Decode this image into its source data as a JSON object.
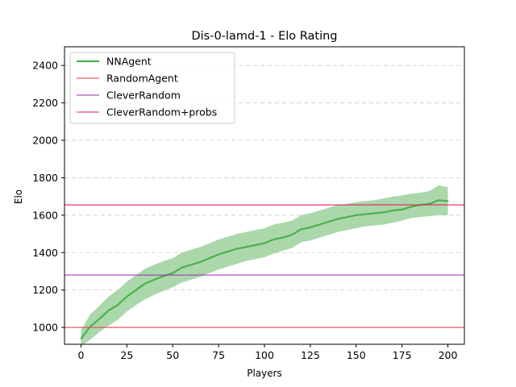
{
  "chart_data": {
    "type": "line",
    "title": "Dis-0-lamd-1 - Elo Rating",
    "xlabel": "Players",
    "ylabel": "Elo",
    "xlim": [
      -9,
      209
    ],
    "ylim": [
      910,
      2500
    ],
    "xticks": [
      0,
      25,
      50,
      75,
      100,
      125,
      150,
      175,
      200
    ],
    "yticks": [
      1000,
      1200,
      1400,
      1600,
      1800,
      2000,
      2200,
      2400
    ],
    "grid": "y-dashed",
    "legend_position": "top-left",
    "series": [
      {
        "name": "NNAgent",
        "color": "#4caf50",
        "band_color": "#a5d6a7",
        "x": [
          0,
          5,
          10,
          15,
          20,
          25,
          30,
          35,
          40,
          45,
          50,
          55,
          60,
          65,
          70,
          75,
          80,
          85,
          90,
          95,
          100,
          105,
          110,
          115,
          120,
          125,
          130,
          135,
          140,
          145,
          150,
          155,
          160,
          165,
          170,
          175,
          180,
          185,
          190,
          195,
          200
        ],
        "values": [
          940,
          1005,
          1045,
          1090,
          1120,
          1165,
          1200,
          1235,
          1255,
          1275,
          1290,
          1320,
          1335,
          1350,
          1370,
          1390,
          1405,
          1420,
          1430,
          1440,
          1450,
          1470,
          1480,
          1495,
          1525,
          1535,
          1550,
          1565,
          1580,
          1590,
          1600,
          1605,
          1610,
          1615,
          1625,
          1630,
          1645,
          1655,
          1660,
          1680,
          1675
        ],
        "lower": [
          900,
          935,
          975,
          1010,
          1040,
          1085,
          1120,
          1150,
          1175,
          1195,
          1215,
          1240,
          1255,
          1270,
          1290,
          1310,
          1325,
          1340,
          1355,
          1365,
          1375,
          1395,
          1410,
          1425,
          1455,
          1465,
          1480,
          1495,
          1510,
          1520,
          1530,
          1540,
          1545,
          1550,
          1560,
          1570,
          1585,
          1590,
          1595,
          1600,
          1600
        ],
        "upper": [
          985,
          1070,
          1115,
          1165,
          1200,
          1245,
          1280,
          1315,
          1335,
          1355,
          1370,
          1400,
          1415,
          1430,
          1450,
          1470,
          1485,
          1500,
          1510,
          1520,
          1530,
          1550,
          1560,
          1570,
          1600,
          1610,
          1625,
          1640,
          1655,
          1660,
          1670,
          1675,
          1680,
          1690,
          1700,
          1705,
          1715,
          1720,
          1730,
          1760,
          1750
        ]
      }
    ],
    "hlines": [
      {
        "name": "RandomAgent",
        "value": 1000,
        "color": "#e53935"
      },
      {
        "name": "CleverRandom",
        "value": 1280,
        "color": "#9c27b0"
      },
      {
        "name": "CleverRandom+probs",
        "value": 1655,
        "color": "#e91e63"
      }
    ]
  }
}
